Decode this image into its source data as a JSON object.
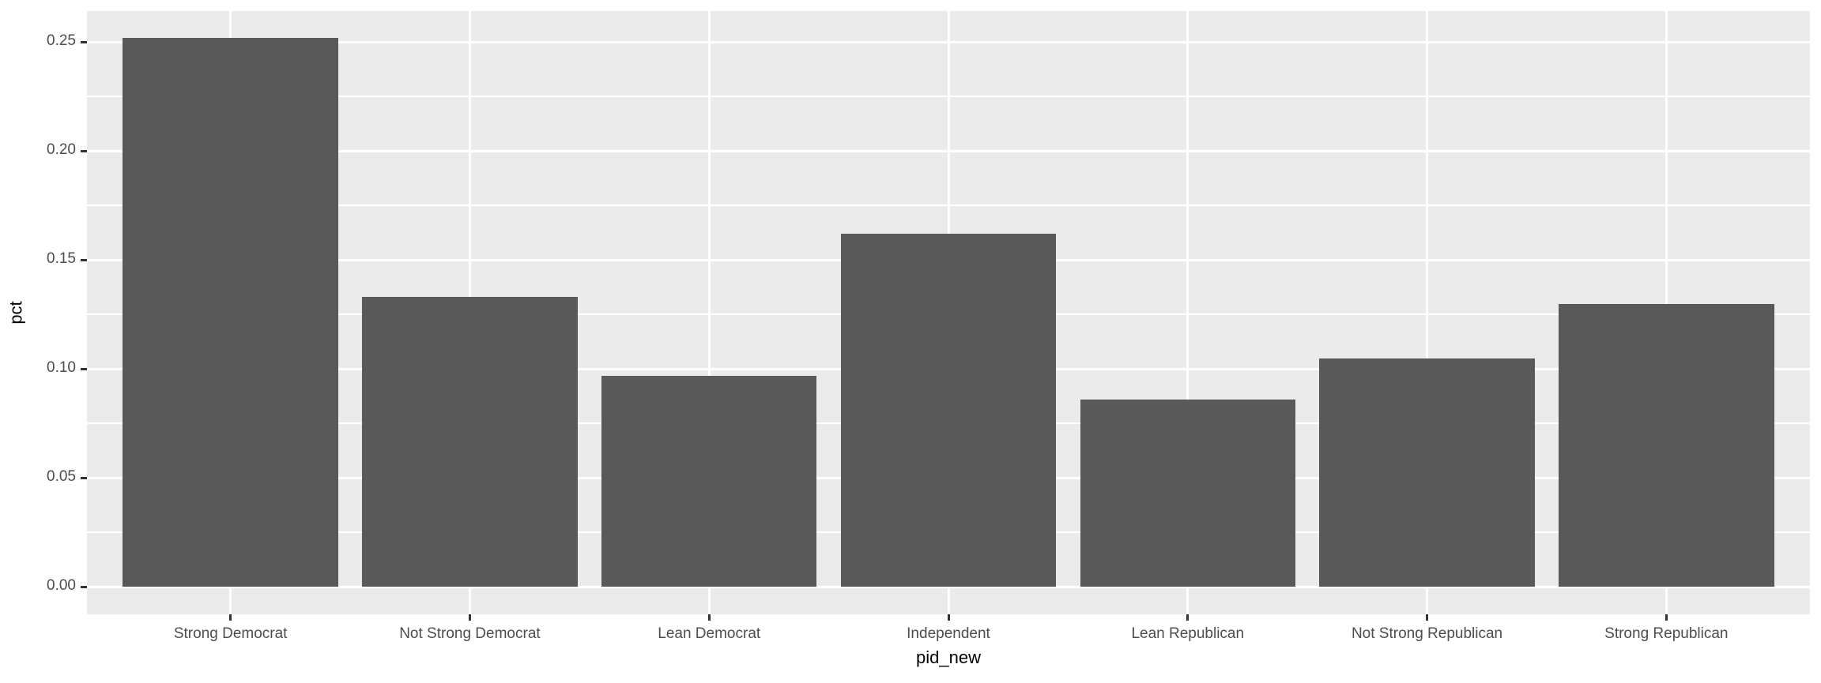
{
  "figure": {
    "background_color": "#FFFFFF",
    "panel_background_color": "#EBEBEB",
    "gridline_color": "#FFFFFF",
    "bar_color": "#595959",
    "axis_text_color": "#4D4D4D",
    "axis_title_color": "#000000",
    "tick_mark_color": "#333333"
  },
  "chart_data": {
    "type": "bar",
    "title": "",
    "xlabel": "pid_new",
    "ylabel": "pct",
    "categories": [
      "Strong Democrat",
      "Not Strong Democrat",
      "Lean Democrat",
      "Independent",
      "Lean Republican",
      "Not Strong Republican",
      "Strong Republican"
    ],
    "values": [
      0.252,
      0.133,
      0.097,
      0.162,
      0.086,
      0.105,
      0.13
    ],
    "ylim": [
      -0.0126,
      0.2643
    ],
    "yticks": [
      0.0,
      0.05,
      0.1,
      0.15,
      0.2,
      0.25
    ],
    "ytick_labels": [
      "0.00",
      "0.05",
      "0.10",
      "0.15",
      "0.20",
      "0.25"
    ],
    "yticks_minor": [
      0.025,
      0.075,
      0.125,
      0.175,
      0.225
    ],
    "grid": "on",
    "legend": "none"
  }
}
